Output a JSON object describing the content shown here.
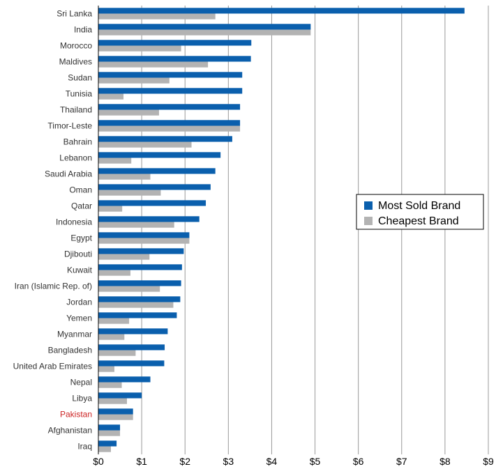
{
  "chart_data": {
    "type": "bar",
    "orientation": "horizontal",
    "categories": [
      "Sri Lanka",
      "India",
      "Morocco",
      "Maldives",
      "Sudan",
      "Tunisia",
      "Thailand",
      "Timor-Leste",
      "Bahrain",
      "Lebanon",
      "Saudi Arabia",
      "Oman",
      "Qatar",
      "Indonesia",
      "Egypt",
      "Djibouti",
      "Kuwait",
      "Iran (Islamic Rep. of)",
      "Jordan",
      "Yemen",
      "Myanmar",
      "Bangladesh",
      "United Arab Emirates",
      "Nepal",
      "Libya",
      "Pakistan",
      "Afghanistan",
      "Iraq"
    ],
    "highlighted_category": "Pakistan",
    "series": [
      {
        "name": "Most Sold Brand",
        "color": "#0a5fad",
        "values": [
          8.45,
          4.9,
          3.53,
          3.52,
          3.32,
          3.32,
          3.27,
          3.27,
          3.09,
          2.82,
          2.7,
          2.59,
          2.48,
          2.33,
          2.1,
          1.97,
          1.93,
          1.91,
          1.89,
          1.81,
          1.6,
          1.53,
          1.52,
          1.2,
          1.0,
          0.8,
          0.5,
          0.42
        ]
      },
      {
        "name": "Cheapest Brand",
        "color": "#b3b3b3",
        "values": [
          2.7,
          4.9,
          1.91,
          2.53,
          1.64,
          0.58,
          1.4,
          3.27,
          2.15,
          0.76,
          1.2,
          1.44,
          0.55,
          1.75,
          2.1,
          1.18,
          0.74,
          1.42,
          1.73,
          0.71,
          0.6,
          0.86,
          0.37,
          0.54,
          0.66,
          0.8,
          0.5,
          0.29
        ]
      }
    ],
    "xlim": [
      0,
      9
    ],
    "x_ticks": [
      "$0",
      "$1",
      "$2",
      "$3",
      "$4",
      "$5",
      "$6",
      "$7",
      "$8",
      "$9"
    ],
    "grid": "vertical",
    "legend_position": "right-middle",
    "colors": {
      "highlight_label": "#cc2222",
      "gridline": "#999999",
      "label": "#333333"
    }
  }
}
